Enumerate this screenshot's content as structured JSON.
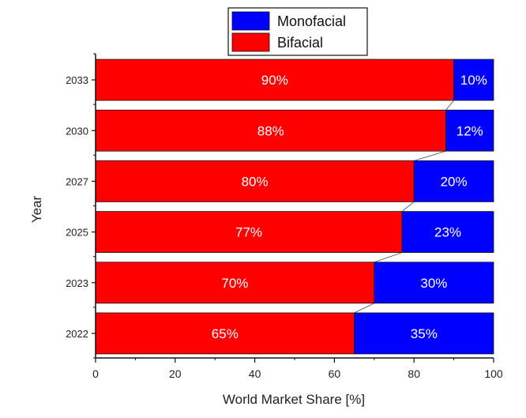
{
  "chart_data": {
    "type": "bar",
    "orientation": "horizontal",
    "stacked": true,
    "title": "",
    "xlabel": "World Market Share [%]",
    "ylabel": "Year",
    "xlim": [
      0,
      100
    ],
    "xticks": [
      0,
      20,
      40,
      60,
      80,
      100
    ],
    "categories": [
      "2033",
      "2030",
      "2027",
      "2025",
      "2023",
      "2022"
    ],
    "series": [
      {
        "name": "Bifacial",
        "color": "#ff0000",
        "values": [
          90,
          88,
          80,
          77,
          70,
          65
        ],
        "labels": [
          "90%",
          "88%",
          "80%",
          "77%",
          "70%",
          "65%"
        ]
      },
      {
        "name": "Monofacial",
        "color": "#0000ff",
        "values": [
          10,
          12,
          20,
          23,
          30,
          35
        ],
        "labels": [
          "10%",
          "12%",
          "20%",
          "23%",
          "30%",
          "35%"
        ]
      }
    ],
    "legend": {
      "placement": "top-center",
      "entries": [
        {
          "name": "Monofacial",
          "color": "#0000ff"
        },
        {
          "name": "Bifacial",
          "color": "#ff0000"
        }
      ]
    },
    "grid": false,
    "connector_lines": true
  }
}
